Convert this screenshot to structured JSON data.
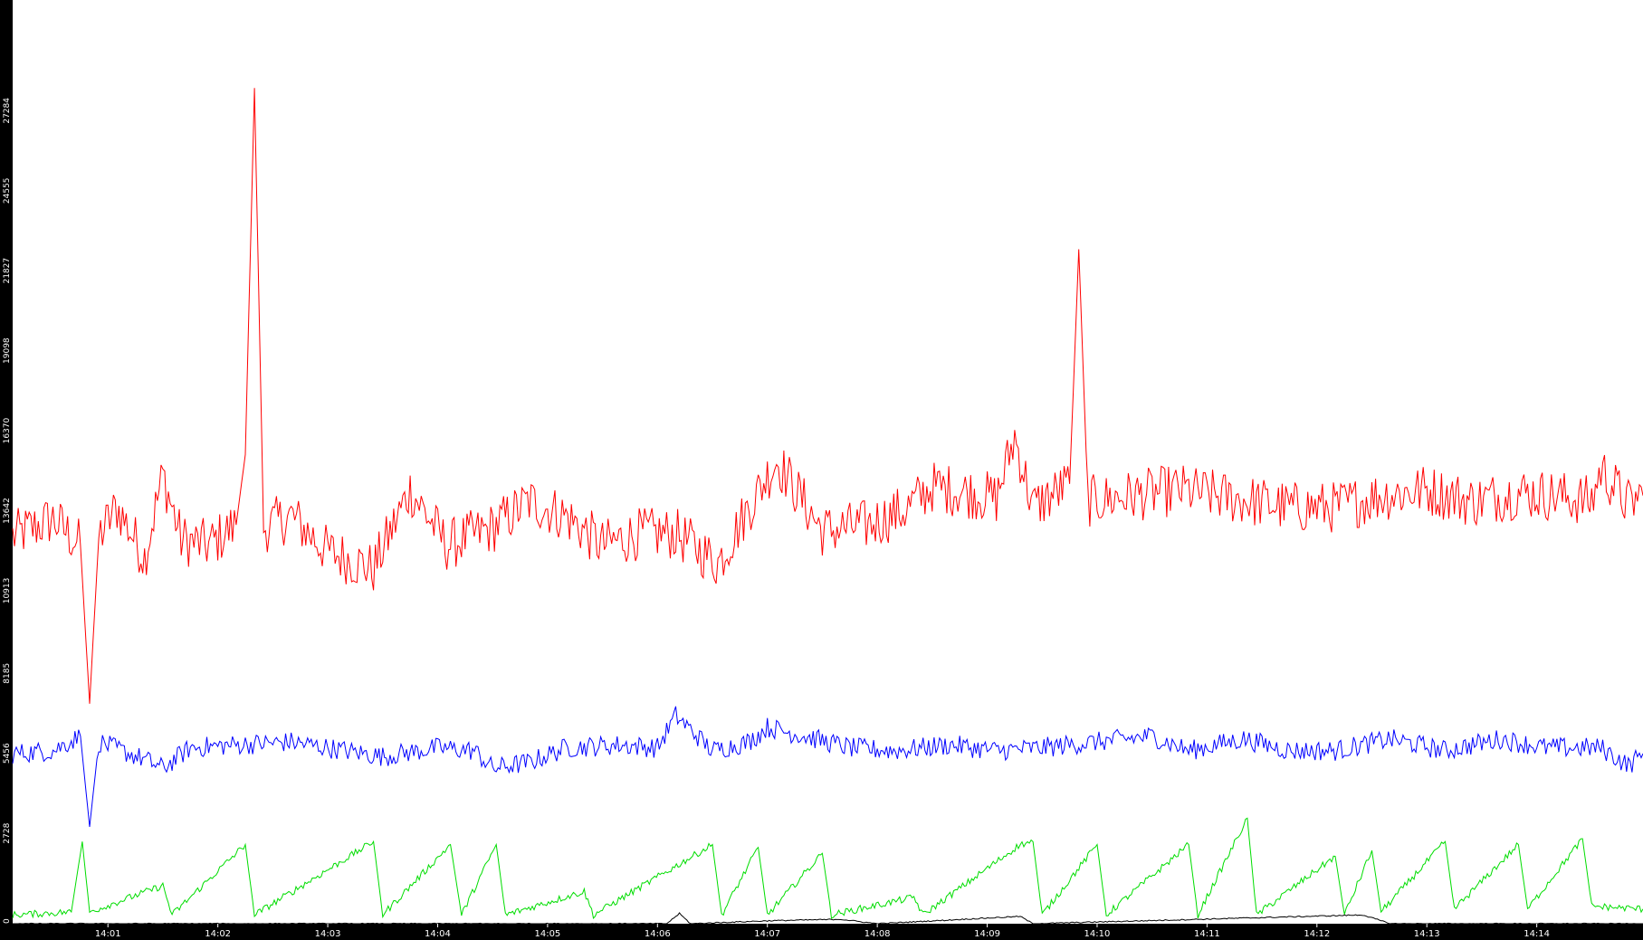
{
  "chart_data": {
    "type": "line",
    "title": "",
    "xlabel": "",
    "ylabel": "",
    "ylim": [
      0,
      31500
    ],
    "y_ticks": [
      "0",
      "2728",
      "5456",
      "8185",
      "10913",
      "13642",
      "16370",
      "19098",
      "21827",
      "24555",
      "27284"
    ],
    "x_ticks": [
      "14:01",
      "14:02",
      "14:03",
      "14:04",
      "14:05",
      "14:06",
      "14:07",
      "14:08",
      "14:09",
      "14:10",
      "14:11",
      "14:12",
      "14:13",
      "14:14"
    ],
    "x_range": [
      "14:00:08",
      "14:14:58"
    ],
    "grid": false,
    "legend": "none",
    "series": [
      {
        "color": "#ff0000",
        "points": [
          [
            "14:00:08",
            13200
          ],
          [
            "14:00:30",
            13800
          ],
          [
            "14:00:45",
            12900
          ],
          [
            "14:00:50",
            7500
          ],
          [
            "14:00:55",
            13200
          ],
          [
            "14:01:05",
            14200
          ],
          [
            "14:01:20",
            12500
          ],
          [
            "14:01:30",
            15300
          ],
          [
            "14:01:40",
            13100
          ],
          [
            "14:01:55",
            12900
          ],
          [
            "14:02:10",
            13600
          ],
          [
            "14:02:15",
            16000
          ],
          [
            "14:02:20",
            28500
          ],
          [
            "14:02:25",
            13500
          ],
          [
            "14:02:40",
            13900
          ],
          [
            "14:03:00",
            12700
          ],
          [
            "14:03:25",
            12100
          ],
          [
            "14:03:45",
            14800
          ],
          [
            "14:04:05",
            12900
          ],
          [
            "14:04:30",
            13500
          ],
          [
            "14:04:50",
            14400
          ],
          [
            "14:05:10",
            13900
          ],
          [
            "14:05:30",
            12900
          ],
          [
            "14:05:50",
            13300
          ],
          [
            "14:06:10",
            13300
          ],
          [
            "14:06:33",
            12300
          ],
          [
            "14:06:50",
            14200
          ],
          [
            "14:07:05",
            15800
          ],
          [
            "14:07:30",
            13400
          ],
          [
            "14:07:55",
            13600
          ],
          [
            "14:08:15",
            14100
          ],
          [
            "14:08:30",
            14900
          ],
          [
            "14:08:50",
            14700
          ],
          [
            "14:09:05",
            14500
          ],
          [
            "14:09:15",
            16600
          ],
          [
            "14:09:25",
            14200
          ],
          [
            "14:09:45",
            15000
          ],
          [
            "14:09:50",
            23000
          ],
          [
            "14:09:55",
            14400
          ],
          [
            "14:10:20",
            14600
          ],
          [
            "14:10:45",
            14800
          ],
          [
            "14:11:05",
            14600
          ],
          [
            "14:11:25",
            14400
          ],
          [
            "14:11:45",
            14200
          ],
          [
            "14:12:10",
            14200
          ],
          [
            "14:12:35",
            14600
          ],
          [
            "14:13:00",
            14800
          ],
          [
            "14:13:25",
            14400
          ],
          [
            "14:13:50",
            14700
          ],
          [
            "14:14:10",
            14600
          ],
          [
            "14:14:30",
            14400
          ],
          [
            "14:14:35",
            15500
          ],
          [
            "14:14:50",
            14300
          ],
          [
            "14:14:58",
            14600
          ]
        ]
      },
      {
        "color": "#0000ff",
        "points": [
          [
            "14:00:08",
            5800
          ],
          [
            "14:00:30",
            5900
          ],
          [
            "14:00:45",
            6400
          ],
          [
            "14:00:50",
            3300
          ],
          [
            "14:00:55",
            6200
          ],
          [
            "14:01:20",
            5600
          ],
          [
            "14:01:30",
            5300
          ],
          [
            "14:01:45",
            6000
          ],
          [
            "14:02:10",
            6100
          ],
          [
            "14:02:40",
            6200
          ],
          [
            "14:03:00",
            6000
          ],
          [
            "14:03:30",
            5700
          ],
          [
            "14:04:00",
            6000
          ],
          [
            "14:04:20",
            5900
          ],
          [
            "14:04:30",
            5300
          ],
          [
            "14:04:50",
            5500
          ],
          [
            "14:05:10",
            6000
          ],
          [
            "14:05:40",
            6100
          ],
          [
            "14:06:00",
            6000
          ],
          [
            "14:06:10",
            7100
          ],
          [
            "14:06:30",
            5900
          ],
          [
            "14:06:50",
            6200
          ],
          [
            "14:07:00",
            6700
          ],
          [
            "14:07:20",
            6400
          ],
          [
            "14:07:45",
            6000
          ],
          [
            "14:08:10",
            5900
          ],
          [
            "14:08:40",
            6100
          ],
          [
            "14:09:05",
            5900
          ],
          [
            "14:09:30",
            6000
          ],
          [
            "14:10:00",
            6200
          ],
          [
            "14:10:30",
            6400
          ],
          [
            "14:10:50",
            5900
          ],
          [
            "14:11:20",
            6300
          ],
          [
            "14:11:45",
            5900
          ],
          [
            "14:12:10",
            5900
          ],
          [
            "14:12:40",
            6300
          ],
          [
            "14:13:10",
            5900
          ],
          [
            "14:13:40",
            6300
          ],
          [
            "14:14:05",
            6000
          ],
          [
            "14:14:35",
            6000
          ],
          [
            "14:14:50",
            5400
          ],
          [
            "14:14:58",
            5800
          ]
        ]
      },
      {
        "color": "#00dd00",
        "points": [
          [
            "14:00:08",
            300
          ],
          [
            "14:00:40",
            400
          ],
          [
            "14:00:46",
            2800
          ],
          [
            "14:00:50",
            400
          ],
          [
            "14:01:30",
            1300
          ],
          [
            "14:01:35",
            300
          ],
          [
            "14:02:15",
            2700
          ],
          [
            "14:02:20",
            300
          ],
          [
            "14:03:25",
            2800
          ],
          [
            "14:03:30",
            300
          ],
          [
            "14:04:07",
            2700
          ],
          [
            "14:04:13",
            300
          ],
          [
            "14:04:32",
            2700
          ],
          [
            "14:04:37",
            300
          ],
          [
            "14:05:20",
            1100
          ],
          [
            "14:05:25",
            300
          ],
          [
            "14:06:30",
            2700
          ],
          [
            "14:06:35",
            300
          ],
          [
            "14:06:55",
            2600
          ],
          [
            "14:07:00",
            300
          ],
          [
            "14:07:30",
            2400
          ],
          [
            "14:07:35",
            300
          ],
          [
            "14:08:20",
            900
          ],
          [
            "14:08:25",
            300
          ],
          [
            "14:09:18",
            2700
          ],
          [
            "14:09:25",
            2800
          ],
          [
            "14:09:30",
            300
          ],
          [
            "14:10:00",
            2700
          ],
          [
            "14:10:05",
            300
          ],
          [
            "14:10:50",
            2700
          ],
          [
            "14:10:55",
            300
          ],
          [
            "14:11:22",
            3600
          ],
          [
            "14:11:27",
            300
          ],
          [
            "14:12:10",
            2300
          ],
          [
            "14:12:15",
            300
          ],
          [
            "14:12:30",
            2500
          ],
          [
            "14:12:35",
            400
          ],
          [
            "14:13:10",
            2800
          ],
          [
            "14:13:15",
            500
          ],
          [
            "14:13:50",
            2700
          ],
          [
            "14:13:55",
            500
          ],
          [
            "14:14:25",
            2900
          ],
          [
            "14:14:30",
            600
          ],
          [
            "14:14:58",
            500
          ]
        ]
      },
      {
        "color": "#000000",
        "points": [
          [
            "14:00:08",
            0
          ],
          [
            "14:06:05",
            0
          ],
          [
            "14:06:12",
            350
          ],
          [
            "14:06:18",
            0
          ],
          [
            "14:07:00",
            100
          ],
          [
            "14:07:40",
            150
          ],
          [
            "14:08:00",
            0
          ],
          [
            "14:09:18",
            250
          ],
          [
            "14:09:25",
            0
          ],
          [
            "14:12:25",
            300
          ],
          [
            "14:12:40",
            0
          ],
          [
            "14:14:58",
            0
          ]
        ]
      }
    ]
  }
}
